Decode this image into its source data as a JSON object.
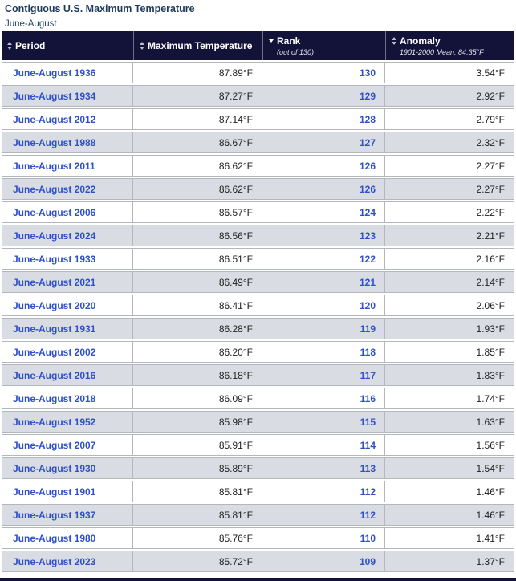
{
  "page": {
    "title": "Contiguous U.S. Maximum Temperature",
    "subtitle": "June-August"
  },
  "colors": {
    "header_background": "#13133a",
    "alt_row_background": "#d9dce2",
    "link_blue": "#2e51c9",
    "title_navy": "#1d3a5e",
    "cell_border": "#b3b7bd"
  },
  "table": {
    "columns": [
      {
        "label": "Period",
        "sub": "",
        "sort": "both"
      },
      {
        "label": "Maximum Temperature",
        "sub": "",
        "sort": "both"
      },
      {
        "label": "Rank",
        "sub": "(out of 130)",
        "sort": "desc"
      },
      {
        "label": "Anomaly",
        "sub": "1901-2000 Mean: 84.35°F",
        "sort": "both"
      }
    ],
    "rows": [
      {
        "period": "June-August 1936",
        "max_temp": "87.89°F",
        "rank": "130",
        "anomaly": "3.54°F"
      },
      {
        "period": "June-August 1934",
        "max_temp": "87.27°F",
        "rank": "129",
        "anomaly": "2.92°F"
      },
      {
        "period": "June-August 2012",
        "max_temp": "87.14°F",
        "rank": "128",
        "anomaly": "2.79°F"
      },
      {
        "period": "June-August 1988",
        "max_temp": "86.67°F",
        "rank": "127",
        "anomaly": "2.32°F"
      },
      {
        "period": "June-August 2011",
        "max_temp": "86.62°F",
        "rank": "126",
        "anomaly": "2.27°F"
      },
      {
        "period": "June-August 2022",
        "max_temp": "86.62°F",
        "rank": "126",
        "anomaly": "2.27°F"
      },
      {
        "period": "June-August 2006",
        "max_temp": "86.57°F",
        "rank": "124",
        "anomaly": "2.22°F"
      },
      {
        "period": "June-August 2024",
        "max_temp": "86.56°F",
        "rank": "123",
        "anomaly": "2.21°F"
      },
      {
        "period": "June-August 1933",
        "max_temp": "86.51°F",
        "rank": "122",
        "anomaly": "2.16°F"
      },
      {
        "period": "June-August 2021",
        "max_temp": "86.49°F",
        "rank": "121",
        "anomaly": "2.14°F"
      },
      {
        "period": "June-August 2020",
        "max_temp": "86.41°F",
        "rank": "120",
        "anomaly": "2.06°F"
      },
      {
        "period": "June-August 1931",
        "max_temp": "86.28°F",
        "rank": "119",
        "anomaly": "1.93°F"
      },
      {
        "period": "June-August 2002",
        "max_temp": "86.20°F",
        "rank": "118",
        "anomaly": "1.85°F"
      },
      {
        "period": "June-August 2016",
        "max_temp": "86.18°F",
        "rank": "117",
        "anomaly": "1.83°F"
      },
      {
        "period": "June-August 2018",
        "max_temp": "86.09°F",
        "rank": "116",
        "anomaly": "1.74°F"
      },
      {
        "period": "June-August 1952",
        "max_temp": "85.98°F",
        "rank": "115",
        "anomaly": "1.63°F"
      },
      {
        "period": "June-August 2007",
        "max_temp": "85.91°F",
        "rank": "114",
        "anomaly": "1.56°F"
      },
      {
        "period": "June-August 1930",
        "max_temp": "85.89°F",
        "rank": "113",
        "anomaly": "1.54°F"
      },
      {
        "period": "June-August 1901",
        "max_temp": "85.81°F",
        "rank": "112",
        "anomaly": "1.46°F"
      },
      {
        "period": "June-August 1937",
        "max_temp": "85.81°F",
        "rank": "112",
        "anomaly": "1.46°F"
      },
      {
        "period": "June-August 1980",
        "max_temp": "85.76°F",
        "rank": "110",
        "anomaly": "1.41°F"
      },
      {
        "period": "June-August 2023",
        "max_temp": "85.72°F",
        "rank": "109",
        "anomaly": "1.37°F"
      }
    ]
  }
}
